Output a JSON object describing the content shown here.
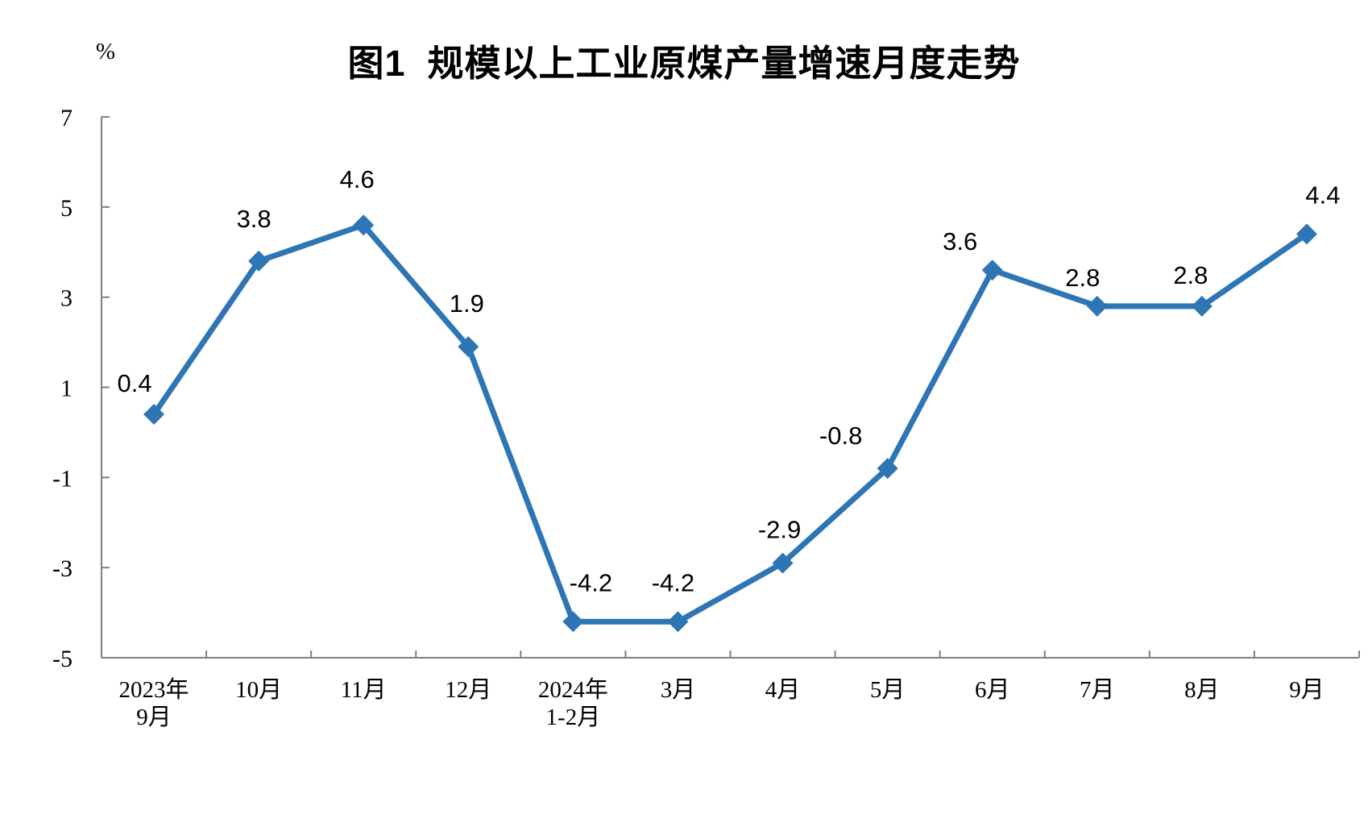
{
  "chart_data": {
    "type": "line",
    "title": "图1  规模以上工业原煤产量增速月度走势",
    "unit_label": "%",
    "categories": [
      [
        "2023年",
        "9月"
      ],
      [
        "10月"
      ],
      [
        "11月"
      ],
      [
        "12月"
      ],
      [
        "2024年",
        "1-2月"
      ],
      [
        "3月"
      ],
      [
        "4月"
      ],
      [
        "5月"
      ],
      [
        "6月"
      ],
      [
        "7月"
      ],
      [
        "8月"
      ],
      [
        "9月"
      ]
    ],
    "values": [
      0.4,
      3.8,
      4.6,
      1.9,
      -4.2,
      -4.2,
      -2.9,
      -0.8,
      3.6,
      2.8,
      2.8,
      4.4
    ],
    "data_labels": [
      "0.4",
      "3.8",
      "4.6",
      "1.9",
      "-4.2",
      "-4.2",
      "-2.9",
      "-0.8",
      "3.6",
      "2.8",
      "2.8",
      "4.4"
    ],
    "y_axis": {
      "ticks": [
        7,
        5,
        3,
        1,
        -1,
        -3,
        -5
      ],
      "min": -5,
      "max": 7
    },
    "xlabel": "",
    "ylabel": "%",
    "grid": false,
    "legend": "none",
    "marker": "diamond",
    "colors": {
      "line": "#2E75B6",
      "axis": "#808080",
      "text": "#000000",
      "background": "#FFFFFF"
    }
  }
}
